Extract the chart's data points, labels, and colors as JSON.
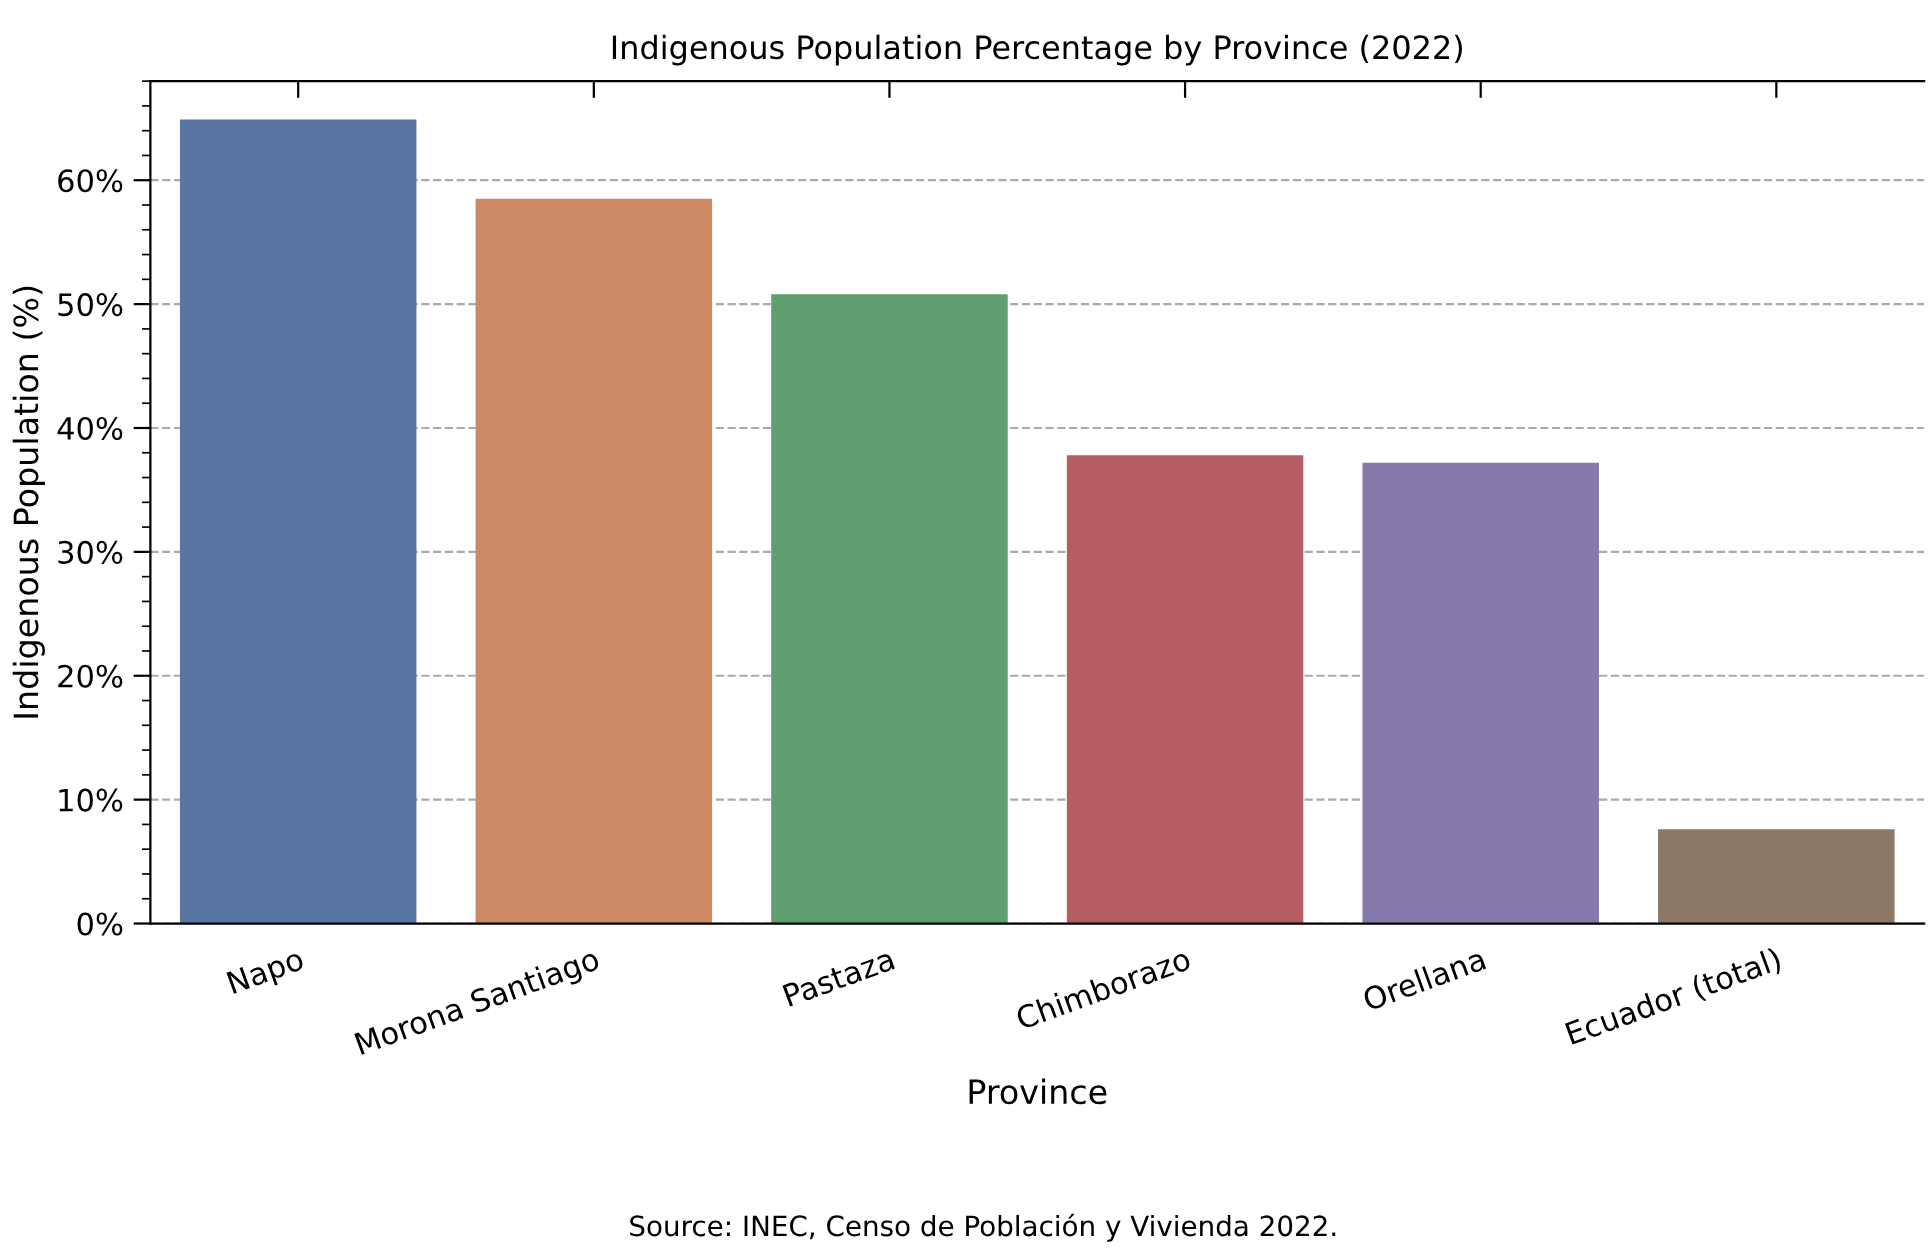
{
  "chart_data": {
    "type": "bar",
    "title": "Indigenous Population Percentage by Province (2022)",
    "xlabel": "Province",
    "ylabel": "Indigenous Population (%)",
    "categories": [
      "Napo",
      "Morona Santiago",
      "Pastaza",
      "Chimborazo",
      "Orellana",
      "Ecuador (total)"
    ],
    "values": [
      64.9,
      58.5,
      50.8,
      37.8,
      37.2,
      7.6
    ],
    "colors": [
      "#5975a4",
      "#cc8963",
      "#5f9e6e",
      "#b55d60",
      "#857aab",
      "#8d7866"
    ],
    "ylim": [
      0,
      68
    ],
    "yticks": [
      {
        "value": 0,
        "label": "0%"
      },
      {
        "value": 10,
        "label": "10%"
      },
      {
        "value": 20,
        "label": "20%"
      },
      {
        "value": 30,
        "label": "30%"
      },
      {
        "value": 40,
        "label": "40%"
      },
      {
        "value": 50,
        "label": "50%"
      },
      {
        "value": 60,
        "label": "60%"
      }
    ],
    "grid": "y",
    "annotations": [
      "Source: INEC, Censo de Población y Vivienda 2022."
    ]
  }
}
